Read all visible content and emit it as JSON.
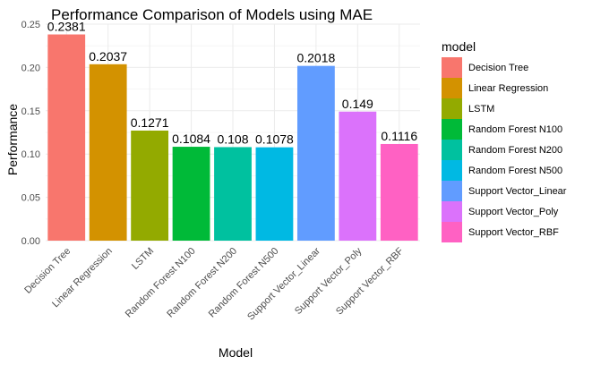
{
  "chart_data": {
    "type": "bar",
    "title": "Performance Comparison of Models using MAE",
    "xlabel": "Model",
    "ylabel": "Performance",
    "ylim": [
      0,
      0.25
    ],
    "yticks": [
      0.0,
      0.05,
      0.1,
      0.15,
      0.2,
      0.25
    ],
    "ytick_labels": [
      "0.00",
      "0.05",
      "0.10",
      "0.15",
      "0.20",
      "0.25"
    ],
    "grid": true,
    "legend_position": "right",
    "legend_title": "model",
    "categories": [
      "Decision Tree",
      "Linear Regression",
      "LSTM",
      "Random Forest N100",
      "Random Forest N200",
      "Random Forest N500",
      "Support Vector_Linear",
      "Support Vector_Poly",
      "Support Vector_RBF"
    ],
    "values": [
      0.2381,
      0.2037,
      0.1271,
      0.1084,
      0.108,
      0.1078,
      0.2018,
      0.149,
      0.1116
    ],
    "value_labels": [
      "0.2381",
      "0.2037",
      "0.1271",
      "0.1084",
      "0.108",
      "0.1078",
      "0.2018",
      "0.149",
      "0.1116"
    ],
    "colors": [
      "#F8766D",
      "#D39200",
      "#93AA00",
      "#00BA38",
      "#00C19F",
      "#00B9E3",
      "#619CFF",
      "#DB72FB",
      "#FF61C3"
    ]
  }
}
